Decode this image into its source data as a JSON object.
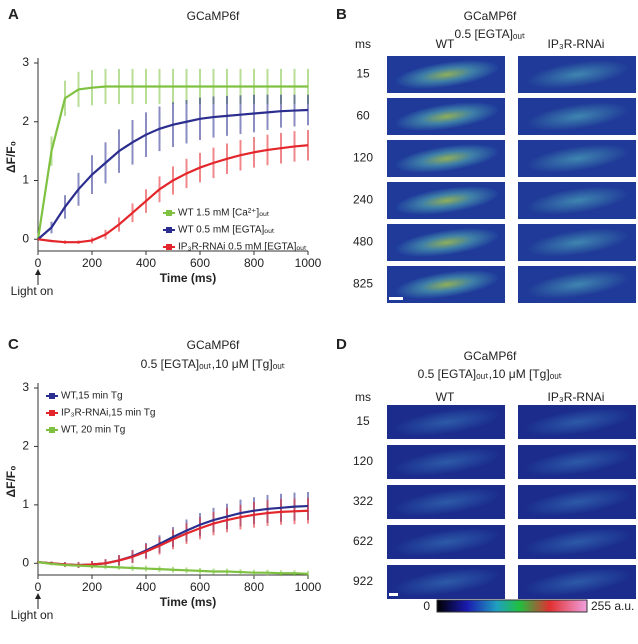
{
  "chart_data": [
    {
      "type": "line",
      "panel": "A",
      "title": "GCaMP6f",
      "xlabel": "Time (ms)",
      "ylabel": "ΔF/F₀",
      "annotation": "Light on",
      "legend": "lower right",
      "x": [
        0,
        50,
        100,
        150,
        200,
        250,
        300,
        350,
        400,
        450,
        500,
        550,
        600,
        650,
        700,
        750,
        800,
        850,
        900,
        950,
        1000
      ],
      "xlim": [
        0,
        1000
      ],
      "ylim": [
        -0.2,
        3
      ],
      "xticks": [
        0,
        200,
        400,
        600,
        800,
        1000
      ],
      "yticks": [
        0,
        1,
        2,
        3
      ],
      "series": [
        {
          "name": "WT 1.5 mM [Ca²⁺]ₒᵤₜ",
          "color": "#7fc241",
          "values": [
            0,
            1.5,
            2.4,
            2.55,
            2.58,
            2.6,
            2.6,
            2.6,
            2.6,
            2.6,
            2.6,
            2.6,
            2.6,
            2.6,
            2.6,
            2.6,
            2.6,
            2.6,
            2.6,
            2.6,
            2.6
          ],
          "errors": [
            0.02,
            0.25,
            0.3,
            0.3,
            0.3,
            0.3,
            0.3,
            0.3,
            0.3,
            0.3,
            0.3,
            0.3,
            0.3,
            0.3,
            0.3,
            0.3,
            0.3,
            0.3,
            0.3,
            0.3,
            0.3
          ]
        },
        {
          "name": "WT 0.5 mM [EGTA]ₒᵤₜ",
          "color": "#2b2e8e",
          "values": [
            0,
            0.2,
            0.55,
            0.85,
            1.1,
            1.3,
            1.5,
            1.65,
            1.78,
            1.88,
            1.95,
            2.0,
            2.05,
            2.08,
            2.1,
            2.12,
            2.14,
            2.16,
            2.18,
            2.19,
            2.2
          ],
          "errors": [
            0.02,
            0.1,
            0.2,
            0.28,
            0.33,
            0.35,
            0.37,
            0.38,
            0.38,
            0.38,
            0.38,
            0.37,
            0.36,
            0.35,
            0.34,
            0.33,
            0.32,
            0.3,
            0.28,
            0.27,
            0.26
          ]
        },
        {
          "name": "IP₃R-RNAi 0.5 mM [EGTA]ₒᵤₜ",
          "color": "#e3262b",
          "values": [
            0,
            -0.03,
            -0.05,
            -0.05,
            -0.02,
            0.08,
            0.25,
            0.45,
            0.65,
            0.85,
            1.0,
            1.12,
            1.22,
            1.3,
            1.37,
            1.43,
            1.48,
            1.52,
            1.55,
            1.58,
            1.6
          ],
          "errors": [
            0.02,
            0.02,
            0.03,
            0.03,
            0.05,
            0.08,
            0.12,
            0.16,
            0.2,
            0.22,
            0.24,
            0.25,
            0.25,
            0.26,
            0.26,
            0.26,
            0.26,
            0.26,
            0.26,
            0.26,
            0.26
          ]
        }
      ]
    },
    {
      "type": "line",
      "panel": "C",
      "title": "GCaMP6f",
      "subtitle": "0.5 [EGTA]ₒᵤₜ,10 μM [Tg]ₒᵤₜ",
      "xlabel": "Time (ms)",
      "ylabel": "ΔF/F₀",
      "annotation": "Light on",
      "legend": "upper left",
      "x": [
        0,
        50,
        100,
        150,
        200,
        250,
        300,
        350,
        400,
        450,
        500,
        550,
        600,
        650,
        700,
        750,
        800,
        850,
        900,
        950,
        1000
      ],
      "xlim": [
        0,
        1000
      ],
      "ylim": [
        -0.2,
        3
      ],
      "xticks": [
        0,
        200,
        400,
        600,
        800,
        1000
      ],
      "yticks": [
        0,
        1,
        2,
        3
      ],
      "series": [
        {
          "name": "WT,15 min Tg",
          "color": "#2b2e8e",
          "values": [
            0.02,
            0,
            -0.02,
            -0.03,
            -0.02,
            0,
            0.05,
            0.12,
            0.22,
            0.33,
            0.45,
            0.56,
            0.66,
            0.74,
            0.8,
            0.86,
            0.9,
            0.93,
            0.95,
            0.97,
            0.98
          ],
          "errors": [
            0.02,
            0.03,
            0.04,
            0.05,
            0.06,
            0.07,
            0.09,
            0.11,
            0.13,
            0.15,
            0.17,
            0.19,
            0.2,
            0.21,
            0.22,
            0.23,
            0.23,
            0.24,
            0.24,
            0.24,
            0.24
          ]
        },
        {
          "name": "IP₃R-RNAi,15 min Tg",
          "color": "#e3262b",
          "values": [
            0.02,
            0,
            -0.02,
            -0.03,
            -0.02,
            0,
            0.05,
            0.11,
            0.2,
            0.3,
            0.41,
            0.51,
            0.6,
            0.68,
            0.74,
            0.79,
            0.83,
            0.86,
            0.88,
            0.89,
            0.9
          ],
          "errors": [
            0.02,
            0.03,
            0.04,
            0.05,
            0.06,
            0.07,
            0.09,
            0.11,
            0.13,
            0.15,
            0.17,
            0.18,
            0.19,
            0.2,
            0.21,
            0.21,
            0.22,
            0.22,
            0.22,
            0.22,
            0.22
          ]
        },
        {
          "name": "WT, 20 min Tg",
          "color": "#7fc241",
          "values": [
            0.02,
            -0.01,
            -0.03,
            -0.04,
            -0.05,
            -0.06,
            -0.07,
            -0.08,
            -0.09,
            -0.1,
            -0.11,
            -0.12,
            -0.13,
            -0.14,
            -0.14,
            -0.15,
            -0.16,
            -0.16,
            -0.17,
            -0.17,
            -0.18
          ],
          "errors": [
            0.01,
            0.02,
            0.03,
            0.03,
            0.04,
            0.04,
            0.04,
            0.05,
            0.05,
            0.05,
            0.05,
            0.05,
            0.05,
            0.05,
            0.05,
            0.05,
            0.05,
            0.05,
            0.05,
            0.05,
            0.05
          ]
        }
      ]
    }
  ],
  "panels": {
    "A": "A",
    "B": "B",
    "C": "C",
    "D": "D"
  },
  "image_panels": [
    {
      "title": "GCaMP6f",
      "subtitle": "0.5 [EGTA]ₒᵤₜ",
      "row_header": "ms",
      "columns": [
        "WT",
        "IP₃R-RNAi"
      ],
      "rows": [
        "15",
        "60",
        "120",
        "240",
        "480",
        "825"
      ]
    },
    {
      "title": "GCaMP6f",
      "subtitle": "0.5 [EGTA]ₒᵤₜ,10 μM [Tg]ₒᵤₜ",
      "row_header": "ms",
      "columns": [
        "WT",
        "IP₃R-RNAi"
      ],
      "rows": [
        "15",
        "120",
        "322",
        "622",
        "922"
      ],
      "colorbar": {
        "min_label": "0",
        "max_label": "255 a.u."
      }
    }
  ]
}
